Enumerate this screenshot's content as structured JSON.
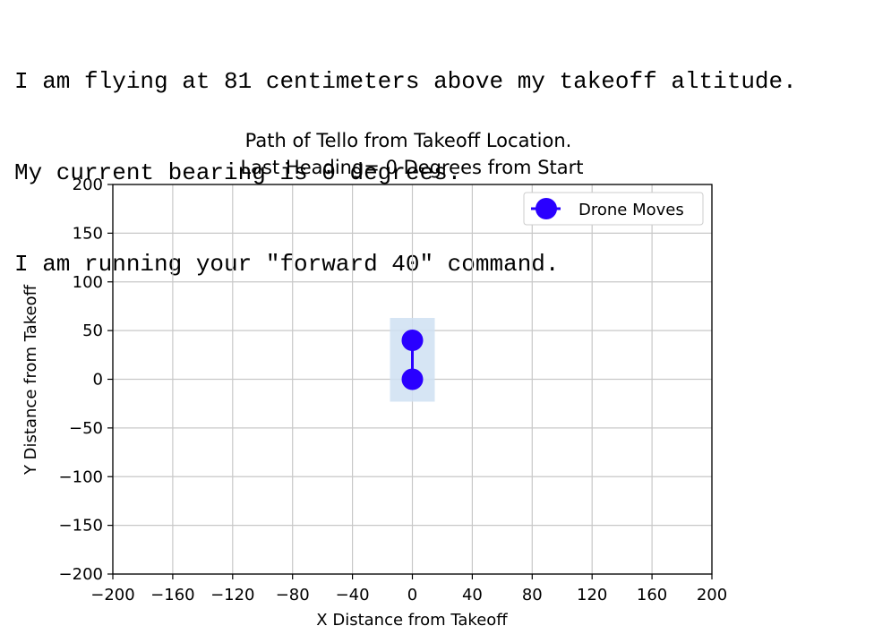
{
  "console": {
    "lines": [
      "I am flying at 81 centimeters above my takeoff altitude.",
      "My current bearing is 0 degrees.",
      "I am running your \"forward 40\" command."
    ]
  },
  "chart_data": {
    "type": "line",
    "title": "Path of Tello from Takeoff Location.",
    "subtitle": "Last Heading= 0 Degrees from Start",
    "xlabel": "X Distance from Takeoff",
    "ylabel": "Y Distance from Takeoff",
    "xlim": [
      -200,
      200
    ],
    "ylim": [
      -200,
      200
    ],
    "xticks": [
      -200,
      -160,
      -120,
      -80,
      -40,
      0,
      40,
      80,
      120,
      160,
      200
    ],
    "xtick_labels": [
      "−200",
      "−160",
      "−120",
      "−80",
      "−40",
      "0",
      "40",
      "80",
      "120",
      "160",
      "200"
    ],
    "yticks": [
      200,
      150,
      100,
      50,
      0,
      -50,
      -100,
      -150,
      -200
    ],
    "ytick_labels": [
      "200",
      "150",
      "100",
      "50",
      "0",
      "−50",
      "−100",
      "−150",
      "−200"
    ],
    "grid": true,
    "legend": {
      "placement": "top-right",
      "entries": [
        "Drone Moves"
      ]
    },
    "series": [
      {
        "name": "Drone Moves",
        "x": [
          0,
          0
        ],
        "y": [
          0,
          40
        ],
        "color": "#2a00ff"
      }
    ],
    "highlight_color": "#cfe0f2"
  }
}
